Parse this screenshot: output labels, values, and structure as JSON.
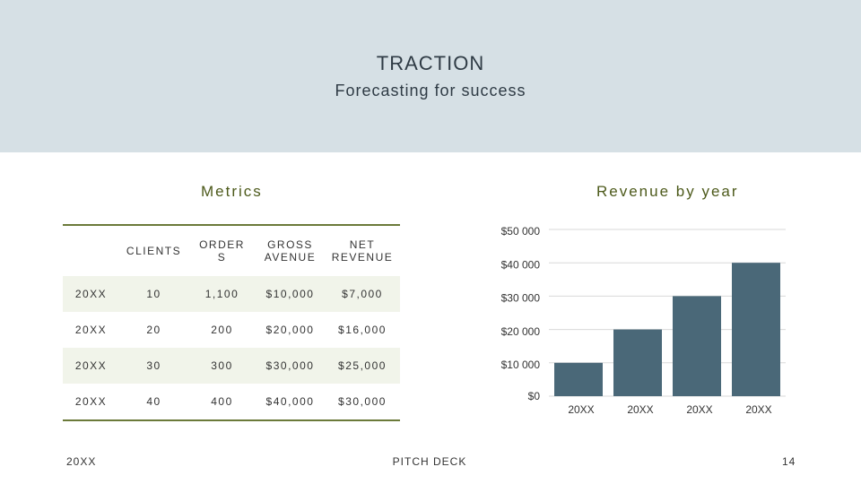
{
  "header": {
    "title": "TRACTION",
    "subtitle": "Forecasting for success"
  },
  "metrics": {
    "title": "Metrics",
    "table": {
      "columns": [
        "CLIENTS",
        "ORDERS",
        "GROSS AVENUE",
        "NET REVENUE"
      ],
      "rows": [
        [
          "20XX",
          "10",
          "1,100",
          "$10,000",
          "$7,000"
        ],
        [
          "20XX",
          "20",
          "200",
          "$20,000",
          "$16,000"
        ],
        [
          "20XX",
          "30",
          "300",
          "$30,000",
          "$25,000"
        ],
        [
          "20XX",
          "40",
          "400",
          "$40,000",
          "$30,000"
        ]
      ]
    }
  },
  "chart_data": {
    "type": "bar",
    "title": "Revenue by year",
    "categories": [
      "20XX",
      "20XX",
      "20XX",
      "20XX"
    ],
    "values": [
      10000,
      20000,
      30000,
      40000
    ],
    "color": "#4a6878",
    "ylim": [
      0,
      50000
    ],
    "yticks": [
      {
        "value": 0,
        "label": "$0"
      },
      {
        "value": 10000,
        "label": "$10 000"
      },
      {
        "value": 20000,
        "label": "$20 000"
      },
      {
        "value": 30000,
        "label": "$30 000"
      },
      {
        "value": 40000,
        "label": "$40 000"
      },
      {
        "value": 50000,
        "label": "$50 000"
      }
    ],
    "grid": true
  },
  "footer": {
    "left": "20XX",
    "center": "PITCH DECK",
    "page": "14"
  }
}
